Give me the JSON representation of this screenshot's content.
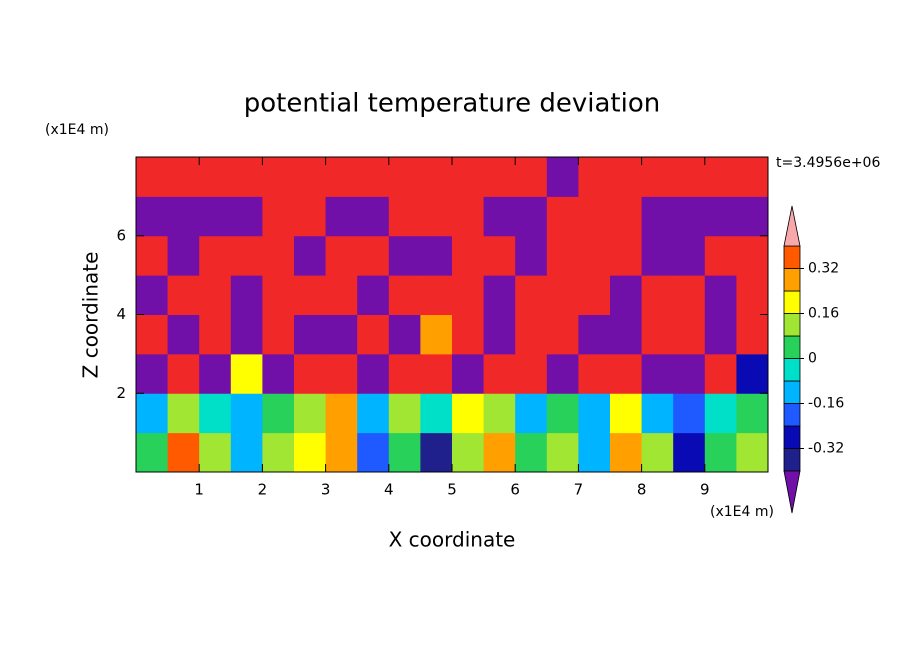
{
  "chart_data": {
    "type": "contour",
    "title": "potential temperature deviation",
    "x_label": "X coordinate",
    "y_label": "Z coordinate",
    "x_unit": "(x1E4 m)",
    "y_unit": "(x1E4 m)",
    "annotation": "t=3.4956e+06",
    "xlim": [
      0,
      10
    ],
    "xticks": [
      1,
      2,
      3,
      4,
      5,
      6,
      7,
      8,
      9
    ],
    "ylim": [
      0,
      8
    ],
    "yticks": [
      2,
      4,
      6
    ],
    "x": [
      0.25,
      0.75,
      1.25,
      1.75,
      2.25,
      2.75,
      3.25,
      3.75,
      4.25,
      4.75,
      5.25,
      5.75,
      6.25,
      6.75,
      7.25,
      7.75,
      8.25,
      8.75,
      9.25,
      9.75
    ],
    "y": [
      0.5,
      1.5,
      2.5,
      3.5,
      4.5,
      5.5,
      6.5,
      7.5
    ],
    "z": [
      [
        0.05,
        0.35,
        0.1,
        -0.1,
        0.1,
        0.2,
        0.3,
        -0.2,
        0.0,
        -0.35,
        0.1,
        0.3,
        0.0,
        0.1,
        -0.1,
        0.3,
        0.1,
        -0.3,
        0.05,
        0.15
      ],
      [
        -0.1,
        0.1,
        -0.05,
        -0.15,
        0.05,
        0.15,
        0.25,
        -0.1,
        0.1,
        -0.05,
        0.2,
        0.1,
        -0.15,
        0.05,
        -0.1,
        0.2,
        -0.1,
        -0.2,
        -0.05,
        0.0
      ],
      [
        -0.5,
        0.5,
        -0.5,
        0.2,
        -0.5,
        0.5,
        0.5,
        -0.5,
        0.5,
        0.5,
        -0.5,
        0.5,
        0.5,
        -0.5,
        0.5,
        0.5,
        -0.5,
        -0.5,
        0.5,
        -0.3
      ],
      [
        0.5,
        -0.5,
        0.5,
        -0.5,
        0.5,
        -0.5,
        -0.5,
        0.5,
        -0.5,
        0.3,
        0.5,
        -0.5,
        0.5,
        0.5,
        -0.5,
        -0.5,
        0.5,
        0.5,
        -0.5,
        0.5
      ],
      [
        -0.5,
        0.5,
        0.5,
        -0.5,
        0.5,
        0.5,
        0.5,
        -0.5,
        0.5,
        0.5,
        0.5,
        -0.5,
        0.5,
        0.5,
        0.5,
        -0.5,
        0.5,
        0.5,
        -0.5,
        0.5
      ],
      [
        0.5,
        -0.5,
        0.5,
        0.5,
        0.5,
        -0.5,
        0.5,
        0.5,
        -0.5,
        -0.5,
        0.5,
        0.5,
        -0.5,
        0.5,
        0.5,
        0.5,
        -0.5,
        -0.5,
        0.5,
        0.5
      ],
      [
        -0.5,
        -0.5,
        -0.5,
        -0.5,
        0.5,
        0.5,
        -0.5,
        -0.5,
        0.5,
        0.5,
        0.5,
        -0.5,
        -0.5,
        0.5,
        0.5,
        0.5,
        -0.5,
        -0.5,
        -0.5,
        -0.5
      ],
      [
        0.5,
        0.5,
        0.5,
        0.5,
        0.5,
        0.5,
        0.5,
        0.5,
        0.5,
        0.5,
        0.5,
        0.5,
        0.5,
        -0.5,
        0.5,
        0.5,
        0.5,
        0.5,
        0.5,
        0.5
      ]
    ],
    "levels": [
      -0.4,
      -0.32,
      -0.24,
      -0.16,
      -0.08,
      0,
      0.08,
      0.16,
      0.24,
      0.32,
      0.4
    ],
    "colors": [
      "#7010a8",
      "#20208c",
      "#0a0ab4",
      "#1e5aff",
      "#00b4ff",
      "#00e0c8",
      "#28d25a",
      "#a0e632",
      "#ffff00",
      "#ffa000",
      "#ff5a00",
      "#f02828",
      "#f8a8a8"
    ],
    "colorbar_ticks": [
      0.32,
      0.16,
      0,
      -0.16,
      -0.32
    ]
  }
}
